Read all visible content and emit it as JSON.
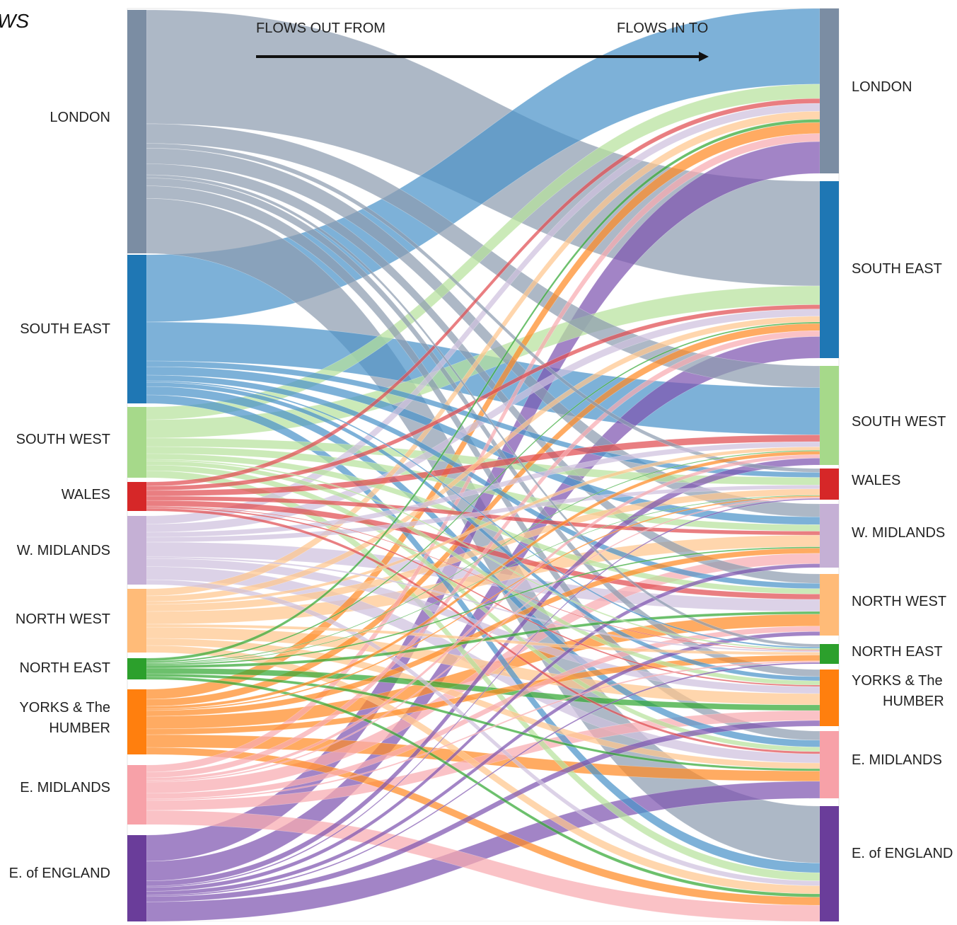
{
  "title_fragment": "WS",
  "header": {
    "out_label": "FLOWS OUT FROM",
    "in_label": "FLOWS IN TO"
  },
  "regions": [
    {
      "name": "LONDON",
      "color": "#7b8da3",
      "flow_color": "#8d9cb0"
    },
    {
      "name": "SOUTH EAST",
      "color": "#1f77b4",
      "flow_color": "#4b93c9"
    },
    {
      "name": "SOUTH WEST",
      "color": "#a6d98a",
      "flow_color": "#b7e29d"
    },
    {
      "name": "WALES",
      "color": "#d62728",
      "flow_color": "#e04c50"
    },
    {
      "name": "W. MIDLANDS",
      "color": "#c5b0d5",
      "flow_color": "#cfc0de"
    },
    {
      "name": "NORTH WEST",
      "color": "#ffbb78",
      "flow_color": "#ffc68d"
    },
    {
      "name": "NORTH EAST",
      "color": "#2ca02c",
      "flow_color": "#33a833"
    },
    {
      "name": "YORKS & The HUMBER",
      "color": "#ff7f0e",
      "flow_color": "#ff8b25"
    },
    {
      "name": "E. MIDLANDS",
      "color": "#f7a1a8",
      "flow_color": "#f8aab0"
    },
    {
      "name": "E. of ENGLAND",
      "color": "#6a3d9a",
      "flow_color": "#7e55b0"
    }
  ],
  "left_labels": [
    {
      "text": "LONDON"
    },
    {
      "text": "SOUTH EAST"
    },
    {
      "text": "SOUTH WEST"
    },
    {
      "text": "WALES"
    },
    {
      "text": "W. MIDLANDS"
    },
    {
      "text": "NORTH WEST"
    },
    {
      "text": "NORTH EAST"
    },
    {
      "text": "YORKS & The"
    },
    {
      "text": "HUMBER"
    },
    {
      "text": "E. MIDLANDS"
    },
    {
      "text": "E. of ENGLAND"
    }
  ],
  "right_labels": [
    {
      "text": "LONDON"
    },
    {
      "text": "SOUTH EAST"
    },
    {
      "text": "SOUTH WEST"
    },
    {
      "text": "WALES"
    },
    {
      "text": "W. MIDLANDS"
    },
    {
      "text": "NORTH WEST"
    },
    {
      "text": "NORTH EAST"
    },
    {
      "text": "YORKS & The"
    },
    {
      "text": "HUMBER"
    },
    {
      "text": "E. MIDLANDS"
    },
    {
      "text": "E. of ENGLAND"
    }
  ]
}
